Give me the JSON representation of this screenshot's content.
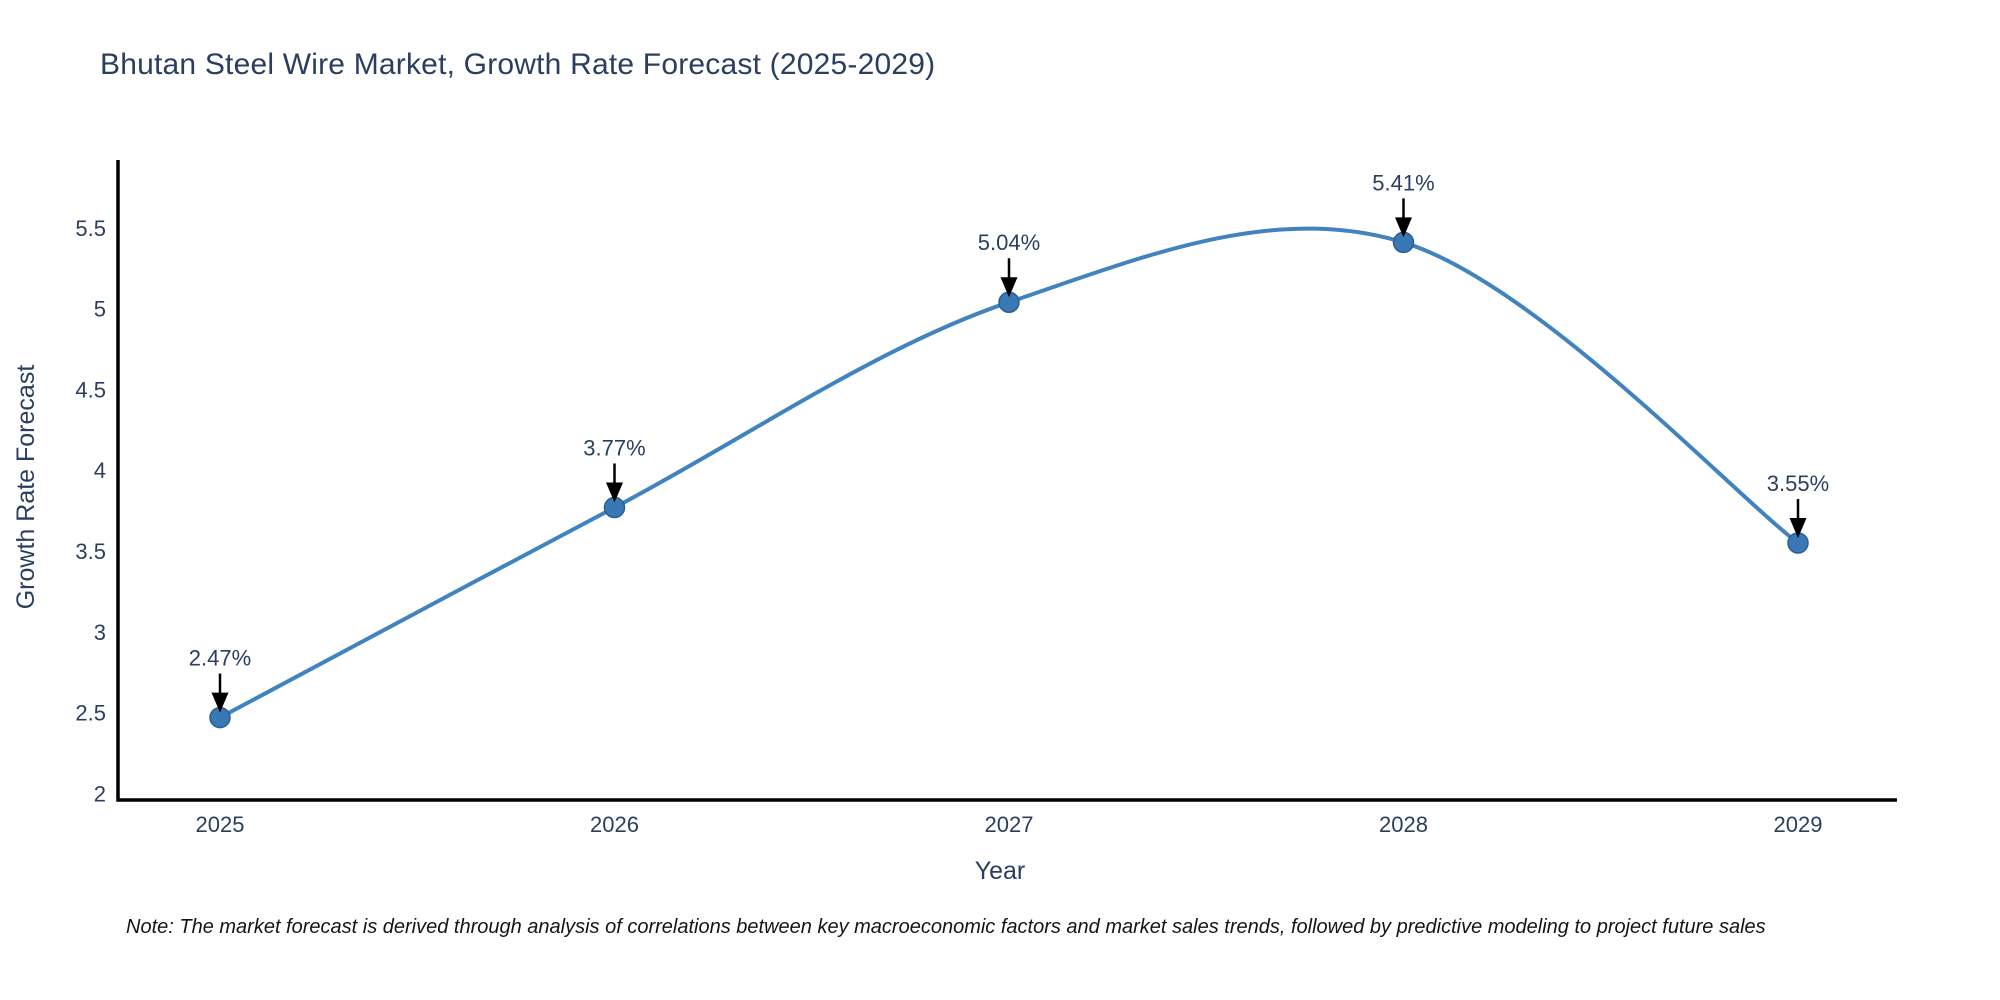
{
  "title": "Bhutan Steel Wire Market, Growth Rate Forecast (2025-2029)",
  "note": "Note: The market forecast is derived through analysis of correlations between key macroeconomic factors and market sales trends, followed by predictive modeling to project future sales",
  "chart_data": {
    "type": "line",
    "line_shape": "spline",
    "title": "Bhutan Steel Wire Market, Growth Rate Forecast (2025-2029)",
    "categories": [
      "2025",
      "2026",
      "2027",
      "2028",
      "2029"
    ],
    "x": [
      2025,
      2026,
      2027,
      2028,
      2029
    ],
    "values": [
      2.47,
      3.77,
      5.04,
      5.41,
      3.55
    ],
    "point_labels": [
      "2.47%",
      "3.77%",
      "5.04%",
      "5.41%",
      "3.55%"
    ],
    "xlabel": "Year",
    "ylabel": "Growth Rate Forecast",
    "ylim": [
      1.96,
      5.92
    ],
    "yticks": [
      2,
      2.5,
      3,
      3.5,
      4,
      4.5,
      5,
      5.5
    ],
    "ytick_labels": [
      "2",
      "2.5",
      "3",
      "3.5",
      "4",
      "4.5",
      "5",
      "5.5"
    ],
    "grid": false,
    "legend": "none",
    "colors": {
      "line": "#4083bf",
      "marker": "#3878b4",
      "marker_edge": "#2c5f8f",
      "axis": "#000000",
      "tick_text": "#2a3f5f",
      "annotation_text": "#2a3f5f",
      "arrow": "#000000",
      "background": "#ffffff"
    }
  }
}
